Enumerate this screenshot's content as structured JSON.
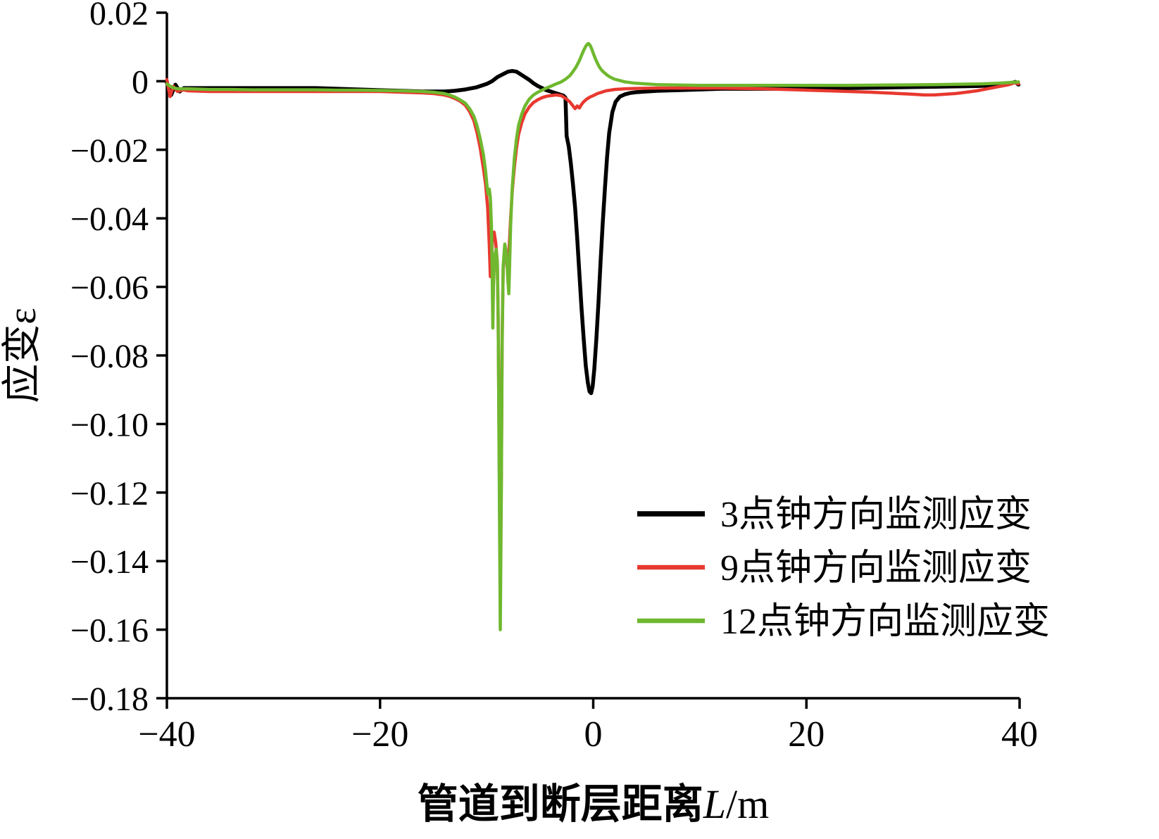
{
  "chart_data": {
    "type": "line",
    "title": "",
    "xlabel": {
      "prefix": "管道到断层距离",
      "var": "L",
      "suffix": "/m"
    },
    "ylabel": "应变ε",
    "xlim": [
      -40,
      40
    ],
    "ylim": [
      -0.18,
      0.02
    ],
    "grid": false,
    "legend_position": "lower right",
    "xtick_values": [
      -40,
      -20,
      0,
      20,
      40
    ],
    "xtick_labels": [
      "−40",
      "−20",
      "0",
      "20",
      "40"
    ],
    "ytick_values": [
      0.02,
      0,
      -0.02,
      -0.04,
      -0.06,
      -0.08,
      -0.1,
      -0.12,
      -0.14,
      -0.16,
      -0.18
    ],
    "ytick_labels": [
      "0.02",
      "0",
      "−0.02",
      "−0.04",
      "−0.06",
      "−0.08",
      "−0.10",
      "−0.12",
      "−0.14",
      "−0.16",
      "−0.18"
    ],
    "series": [
      {
        "id": "3-oclock",
        "name": "3点钟方向监测应变",
        "color": "#000000",
        "width": 5.5,
        "points": [
          [
            -40,
            -0.0005
          ],
          [
            -39.6,
            -0.004
          ],
          [
            -39.2,
            -0.001
          ],
          [
            -38.8,
            -0.003
          ],
          [
            -38.4,
            -0.002
          ],
          [
            -38,
            -0.002
          ],
          [
            -36,
            -0.002
          ],
          [
            -34,
            -0.002
          ],
          [
            -32,
            -0.002
          ],
          [
            -30,
            -0.002
          ],
          [
            -28,
            -0.002
          ],
          [
            -26,
            -0.002
          ],
          [
            -24,
            -0.0022
          ],
          [
            -22,
            -0.0024
          ],
          [
            -20,
            -0.0026
          ],
          [
            -18,
            -0.0028
          ],
          [
            -16,
            -0.003
          ],
          [
            -15,
            -0.003
          ],
          [
            -14,
            -0.003
          ],
          [
            -13,
            -0.0028
          ],
          [
            -12,
            -0.0024
          ],
          [
            -11,
            -0.0018
          ],
          [
            -10,
            -0.0008
          ],
          [
            -9.5,
            0
          ],
          [
            -9,
            0.0012
          ],
          [
            -8.5,
            0.002
          ],
          [
            -8,
            0.0028
          ],
          [
            -7.6,
            0.003
          ],
          [
            -7.2,
            0.0028
          ],
          [
            -6.8,
            0.002
          ],
          [
            -6.4,
            0.0012
          ],
          [
            -6,
            0.0004
          ],
          [
            -5.6,
            -0.0006
          ],
          [
            -5.2,
            -0.0014
          ],
          [
            -4.8,
            -0.002
          ],
          [
            -4.4,
            -0.0026
          ],
          [
            -4,
            -0.003
          ],
          [
            -3.6,
            -0.0034
          ],
          [
            -3.2,
            -0.0038
          ],
          [
            -2.8,
            -0.0042
          ],
          [
            -2.6,
            -0.0048
          ],
          [
            -2.5,
            -0.016
          ],
          [
            -2.3,
            -0.019
          ],
          [
            -2.1,
            -0.024
          ],
          [
            -1.9,
            -0.03
          ],
          [
            -1.7,
            -0.037
          ],
          [
            -1.5,
            -0.046
          ],
          [
            -1.3,
            -0.056
          ],
          [
            -1.1,
            -0.066
          ],
          [
            -0.9,
            -0.075
          ],
          [
            -0.7,
            -0.083
          ],
          [
            -0.5,
            -0.088
          ],
          [
            -0.35,
            -0.0905
          ],
          [
            -0.2,
            -0.091
          ],
          [
            -0.05,
            -0.089
          ],
          [
            0.1,
            -0.084
          ],
          [
            0.3,
            -0.075
          ],
          [
            0.5,
            -0.064
          ],
          [
            0.7,
            -0.052
          ],
          [
            0.9,
            -0.041
          ],
          [
            1.1,
            -0.031
          ],
          [
            1.3,
            -0.022
          ],
          [
            1.5,
            -0.015
          ],
          [
            1.8,
            -0.009
          ],
          [
            2.1,
            -0.006
          ],
          [
            2.5,
            -0.0045
          ],
          [
            3,
            -0.0038
          ],
          [
            3.5,
            -0.0034
          ],
          [
            4,
            -0.0032
          ],
          [
            5,
            -0.003
          ],
          [
            6,
            -0.0028
          ],
          [
            8,
            -0.0026
          ],
          [
            10,
            -0.0024
          ],
          [
            12,
            -0.0022
          ],
          [
            14,
            -0.0022
          ],
          [
            16,
            -0.0022
          ],
          [
            18,
            -0.0022
          ],
          [
            20,
            -0.0022
          ],
          [
            24,
            -0.002
          ],
          [
            28,
            -0.0018
          ],
          [
            32,
            -0.0016
          ],
          [
            34,
            -0.0015
          ],
          [
            36,
            -0.0014
          ],
          [
            38,
            -0.0012
          ],
          [
            39,
            -0.0008
          ],
          [
            39.6,
            -0.0002
          ],
          [
            39.9,
            -0.001
          ]
        ]
      },
      {
        "id": "9-oclock",
        "name": "9点钟方向监测应变",
        "color": "#e8392f",
        "width": 4.5,
        "points": [
          [
            -40,
            0.0005
          ],
          [
            -39.7,
            -0.0045
          ],
          [
            -39.4,
            -0.0015
          ],
          [
            -39,
            -0.003
          ],
          [
            -38.5,
            -0.0025
          ],
          [
            -38,
            -0.0028
          ],
          [
            -36,
            -0.003
          ],
          [
            -34,
            -0.003
          ],
          [
            -32,
            -0.003
          ],
          [
            -30,
            -0.003
          ],
          [
            -28,
            -0.003
          ],
          [
            -26,
            -0.003
          ],
          [
            -24,
            -0.003
          ],
          [
            -22,
            -0.003
          ],
          [
            -20,
            -0.003
          ],
          [
            -18,
            -0.0032
          ],
          [
            -16,
            -0.0034
          ],
          [
            -15,
            -0.0036
          ],
          [
            -14,
            -0.004
          ],
          [
            -13.5,
            -0.0044
          ],
          [
            -13,
            -0.005
          ],
          [
            -12.5,
            -0.0058
          ],
          [
            -12,
            -0.007
          ],
          [
            -11.6,
            -0.0088
          ],
          [
            -11.2,
            -0.0115
          ],
          [
            -10.9,
            -0.015
          ],
          [
            -10.6,
            -0.0195
          ],
          [
            -10.3,
            -0.0255
          ],
          [
            -10.1,
            -0.03
          ],
          [
            -9.9,
            -0.037
          ],
          [
            -9.75,
            -0.048
          ],
          [
            -9.65,
            -0.057
          ],
          [
            -9.55,
            -0.0525
          ],
          [
            -9.45,
            -0.046
          ],
          [
            -9.3,
            -0.044
          ],
          [
            -9.15,
            -0.047
          ],
          [
            -9,
            -0.053
          ],
          [
            -8.92,
            -0.07
          ],
          [
            -8.82,
            -0.11
          ],
          [
            -8.72,
            -0.145
          ],
          [
            -8.62,
            -0.115
          ],
          [
            -8.55,
            -0.075
          ],
          [
            -8.45,
            -0.055
          ],
          [
            -8.3,
            -0.049
          ],
          [
            -8.15,
            -0.05
          ],
          [
            -8,
            -0.054
          ],
          [
            -7.9,
            -0.0495
          ],
          [
            -7.75,
            -0.04
          ],
          [
            -7.6,
            -0.032
          ],
          [
            -7.4,
            -0.025
          ],
          [
            -7.2,
            -0.0195
          ],
          [
            -7,
            -0.0155
          ],
          [
            -6.7,
            -0.012
          ],
          [
            -6.4,
            -0.0095
          ],
          [
            -6,
            -0.0075
          ],
          [
            -5.6,
            -0.0062
          ],
          [
            -5.2,
            -0.0054
          ],
          [
            -4.8,
            -0.0048
          ],
          [
            -4.4,
            -0.0044
          ],
          [
            -4,
            -0.0042
          ],
          [
            -3.5,
            -0.004
          ],
          [
            -3,
            -0.0042
          ],
          [
            -2.6,
            -0.005
          ],
          [
            -2.2,
            -0.006
          ],
          [
            -1.9,
            -0.0072
          ],
          [
            -1.7,
            -0.008
          ],
          [
            -1.5,
            -0.0072
          ],
          [
            -1.3,
            -0.0078
          ],
          [
            -1.1,
            -0.0068
          ],
          [
            -0.9,
            -0.006
          ],
          [
            -0.6,
            -0.0052
          ],
          [
            -0.3,
            -0.0046
          ],
          [
            0,
            -0.0042
          ],
          [
            0.4,
            -0.0036
          ],
          [
            0.8,
            -0.0032
          ],
          [
            1.2,
            -0.0028
          ],
          [
            1.6,
            -0.0026
          ],
          [
            2,
            -0.0024
          ],
          [
            3,
            -0.0022
          ],
          [
            4,
            -0.0021
          ],
          [
            6,
            -0.002
          ],
          [
            8,
            -0.002
          ],
          [
            10,
            -0.002
          ],
          [
            12,
            -0.002
          ],
          [
            14,
            -0.0021
          ],
          [
            16,
            -0.0022
          ],
          [
            18,
            -0.0024
          ],
          [
            20,
            -0.0026
          ],
          [
            22,
            -0.0028
          ],
          [
            24,
            -0.003
          ],
          [
            26,
            -0.0032
          ],
          [
            28,
            -0.0035
          ],
          [
            30,
            -0.0038
          ],
          [
            31,
            -0.004
          ],
          [
            32,
            -0.004
          ],
          [
            33,
            -0.0038
          ],
          [
            34,
            -0.0036
          ],
          [
            35,
            -0.0032
          ],
          [
            36,
            -0.0028
          ],
          [
            37,
            -0.0022
          ],
          [
            38,
            -0.0016
          ],
          [
            39,
            -0.001
          ],
          [
            39.6,
            -0.0004
          ],
          [
            39.9,
            -0.0008
          ]
        ]
      },
      {
        "id": "12-oclock",
        "name": "12点钟方向监测应变",
        "color": "#6fb82f",
        "width": 4.5,
        "points": [
          [
            -40,
            -0.0008
          ],
          [
            -39.5,
            -0.0018
          ],
          [
            -39,
            -0.0022
          ],
          [
            -38,
            -0.0022
          ],
          [
            -36,
            -0.0024
          ],
          [
            -34,
            -0.0024
          ],
          [
            -32,
            -0.0025
          ],
          [
            -30,
            -0.0025
          ],
          [
            -28,
            -0.0025
          ],
          [
            -26,
            -0.0025
          ],
          [
            -24,
            -0.0026
          ],
          [
            -22,
            -0.0026
          ],
          [
            -20,
            -0.0027
          ],
          [
            -18,
            -0.0028
          ],
          [
            -16,
            -0.003
          ],
          [
            -15,
            -0.0032
          ],
          [
            -14,
            -0.0036
          ],
          [
            -13.5,
            -0.004
          ],
          [
            -13,
            -0.0046
          ],
          [
            -12.5,
            -0.0054
          ],
          [
            -12,
            -0.0064
          ],
          [
            -11.6,
            -0.008
          ],
          [
            -11.2,
            -0.0102
          ],
          [
            -10.9,
            -0.013
          ],
          [
            -10.6,
            -0.0168
          ],
          [
            -10.3,
            -0.0215
          ],
          [
            -10.1,
            -0.0262
          ],
          [
            -9.95,
            -0.031
          ],
          [
            -9.85,
            -0.033
          ],
          [
            -9.75,
            -0.0315
          ],
          [
            -9.65,
            -0.034
          ],
          [
            -9.55,
            -0.042
          ],
          [
            -9.48,
            -0.056
          ],
          [
            -9.42,
            -0.072
          ],
          [
            -9.36,
            -0.06
          ],
          [
            -9.25,
            -0.051
          ],
          [
            -9.1,
            -0.049
          ],
          [
            -9,
            -0.053
          ],
          [
            -8.92,
            -0.068
          ],
          [
            -8.82,
            -0.115
          ],
          [
            -8.72,
            -0.16
          ],
          [
            -8.62,
            -0.12
          ],
          [
            -8.55,
            -0.078
          ],
          [
            -8.45,
            -0.054
          ],
          [
            -8.3,
            -0.0475
          ],
          [
            -8.15,
            -0.05
          ],
          [
            -8,
            -0.0585
          ],
          [
            -7.92,
            -0.062
          ],
          [
            -7.85,
            -0.054
          ],
          [
            -7.75,
            -0.042
          ],
          [
            -7.6,
            -0.031
          ],
          [
            -7.4,
            -0.0225
          ],
          [
            -7.2,
            -0.0168
          ],
          [
            -7,
            -0.0128
          ],
          [
            -6.7,
            -0.0095
          ],
          [
            -6.4,
            -0.0072
          ],
          [
            -6,
            -0.0052
          ],
          [
            -5.6,
            -0.004
          ],
          [
            -5.2,
            -0.0032
          ],
          [
            -4.8,
            -0.0026
          ],
          [
            -4.4,
            -0.002
          ],
          [
            -4,
            -0.0015
          ],
          [
            -3.5,
            -0.0008
          ],
          [
            -3,
            -0.0002
          ],
          [
            -2.6,
            0.0006
          ],
          [
            -2.2,
            0.0016
          ],
          [
            -1.9,
            0.0028
          ],
          [
            -1.6,
            0.0042
          ],
          [
            -1.3,
            0.006
          ],
          [
            -1.1,
            0.0075
          ],
          [
            -0.9,
            0.009
          ],
          [
            -0.7,
            0.0102
          ],
          [
            -0.55,
            0.0108
          ],
          [
            -0.45,
            0.011
          ],
          [
            -0.3,
            0.0105
          ],
          [
            -0.15,
            0.0095
          ],
          [
            0,
            0.0082
          ],
          [
            0.2,
            0.0066
          ],
          [
            0.4,
            0.0052
          ],
          [
            0.6,
            0.004
          ],
          [
            0.8,
            0.0032
          ],
          [
            1,
            0.0026
          ],
          [
            1.3,
            0.0018
          ],
          [
            1.6,
            0.0012
          ],
          [
            2,
            0.0006
          ],
          [
            2.5,
            0.0002
          ],
          [
            3,
            -0.0002
          ],
          [
            4,
            -0.0006
          ],
          [
            5,
            -0.0008
          ],
          [
            6,
            -0.001
          ],
          [
            8,
            -0.0011
          ],
          [
            10,
            -0.0012
          ],
          [
            12,
            -0.0012
          ],
          [
            14,
            -0.0012
          ],
          [
            16,
            -0.0012
          ],
          [
            18,
            -0.0012
          ],
          [
            20,
            -0.0012
          ],
          [
            24,
            -0.0012
          ],
          [
            28,
            -0.0011
          ],
          [
            32,
            -0.001
          ],
          [
            34,
            -0.0009
          ],
          [
            36,
            -0.0008
          ],
          [
            38,
            -0.0006
          ],
          [
            39,
            -0.0004
          ],
          [
            39.9,
            -0.0002
          ]
        ]
      }
    ]
  }
}
